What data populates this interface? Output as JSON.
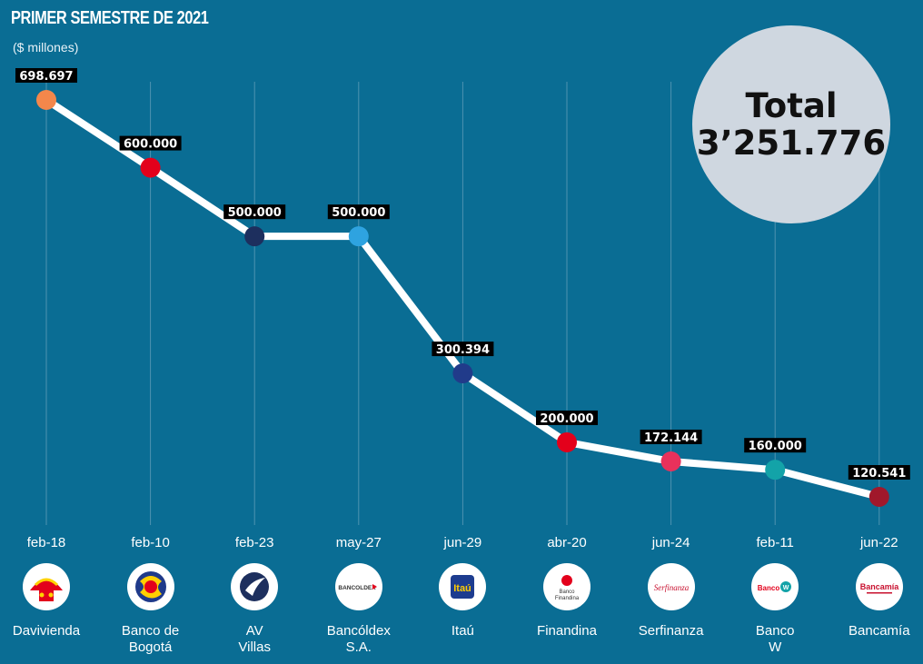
{
  "title": "PRIMER SEMESTRE DE 2021",
  "subtitle": "($ millones)",
  "total": {
    "label": "Total",
    "value": "3’251.776"
  },
  "colors": {
    "background": "#0a6d94",
    "line": "#ffffff",
    "gridline": "#4e93b1",
    "label_bg": "#000000"
  },
  "chart_data": {
    "type": "line",
    "title": "PRIMER SEMESTRE DE 2021",
    "subtitle": "($ millones)",
    "categories": [
      "feb-18",
      "feb-10",
      "feb-23",
      "may-27",
      "jun-29",
      "abr-20",
      "jun-24",
      "feb-11",
      "jun-22"
    ],
    "banks": [
      "Davivienda",
      "Banco de\nBogotá",
      "AV\nVillas",
      "Bancóldex\nS.A.",
      "Itaú",
      "Finandina",
      "Serfinanza",
      "Banco\nW",
      "Bancamía"
    ],
    "values": [
      698697,
      600000,
      500000,
      500000,
      300394,
      200000,
      172144,
      160000,
      120541
    ],
    "value_labels": [
      "698.697",
      "600.000",
      "500.000",
      "500.000",
      "300.394",
      "200.000",
      "172.144",
      "160.000",
      "120.541"
    ],
    "point_colors": [
      "#f4874b",
      "#e3001b",
      "#1d2f5e",
      "#2ea3e0",
      "#213b8a",
      "#e3001b",
      "#e8315b",
      "#13a3a8",
      "#a0182b"
    ],
    "logo_icons": [
      "davivienda-logo-icon",
      "banco-de-bogota-logo-icon",
      "av-villas-logo-icon",
      "bancoldex-logo-icon",
      "itau-logo-icon",
      "finandina-logo-icon",
      "serfinanza-logo-icon",
      "banco-w-logo-icon",
      "bancamia-logo-icon"
    ],
    "logo_texts": [
      "",
      "",
      "",
      "BANCOLDEX",
      "Itaú",
      "Banco Finandina",
      "Serfinanza",
      "Banco W",
      "Bancamía"
    ],
    "grid": "vertical",
    "legend": "none"
  }
}
